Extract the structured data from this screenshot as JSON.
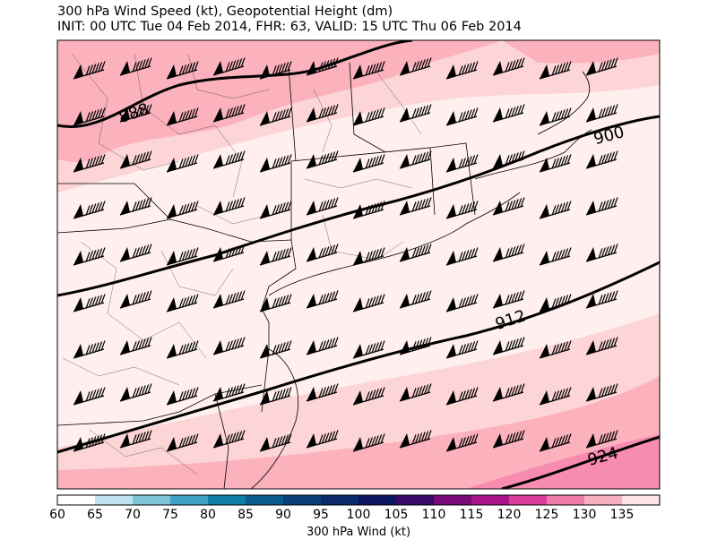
{
  "title": {
    "line1": "300 hPa Wind Speed (kt), Geopotential Height (dm)",
    "line2": "INIT: 00 UTC Tue 04 Feb 2014, FHR: 63, VALID: 15 UTC Thu 06 Feb 2014"
  },
  "contour_labels": [
    "888",
    "900",
    "912",
    "924"
  ],
  "colorbar": {
    "label": "300 hPa Wind (kt)",
    "ticks": [
      "60",
      "65",
      "70",
      "75",
      "80",
      "85",
      "90",
      "95",
      "100",
      "105",
      "110",
      "115",
      "120",
      "125",
      "130",
      "135"
    ],
    "colors": [
      "#ffffff",
      "#bfe3ee",
      "#7fc3d8",
      "#3fa1c2",
      "#0f7fa8",
      "#0a5a8e",
      "#0a3f78",
      "#0b2a6a",
      "#0c1560",
      "#3a0a6a",
      "#7a0a78",
      "#a81488",
      "#d83c98",
      "#f07aa8",
      "#f8b0c0",
      "#fde4e6",
      "#ffffff"
    ]
  },
  "map": {
    "fill_colors": {
      "low": "#fff0ef",
      "mid": "#fdd5d6",
      "high": "#fbb2bd",
      "max": "#f78bb0"
    }
  }
}
